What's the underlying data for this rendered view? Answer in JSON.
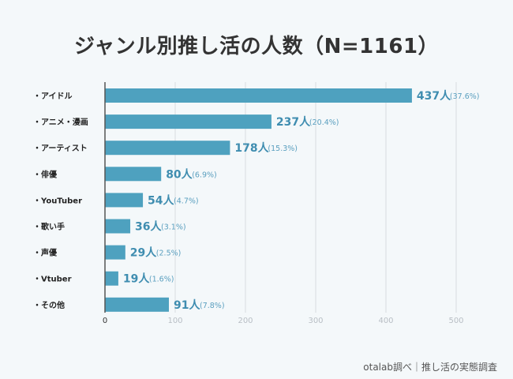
{
  "chart_data": {
    "type": "bar",
    "orientation": "horizontal",
    "title": "ジャンル別推し活の人数（N=1161）",
    "categories": [
      "・アイドル",
      "・アニメ・漫画",
      "・アーティスト",
      "・俳優",
      "・YouTuber",
      "・歌い手",
      "・声優",
      "・Vtuber",
      "・その他"
    ],
    "values": [
      437,
      237,
      178,
      80,
      54,
      36,
      29,
      19,
      91
    ],
    "percents": [
      "(37.6%)",
      "(20.4%)",
      "(15.3%)",
      "(6.9%)",
      "(4.7%)",
      "(3.1%)",
      "(2.5%)",
      "(1.6%)",
      "(7.8%)"
    ],
    "value_suffix": "人",
    "xlabel": "",
    "ylabel": "",
    "xlim": [
      0,
      500
    ],
    "xticks": [
      0,
      100,
      200,
      300,
      400,
      500
    ],
    "grid": true,
    "legend": "none",
    "colors": {
      "bar": "#4ea1bf",
      "value_label": "#3f8db0",
      "percent_label": "#5a9fbf",
      "grid": "#d8dce0",
      "axis": "#555555"
    }
  },
  "footer": "otalab調べ｜推し活の実態調査"
}
